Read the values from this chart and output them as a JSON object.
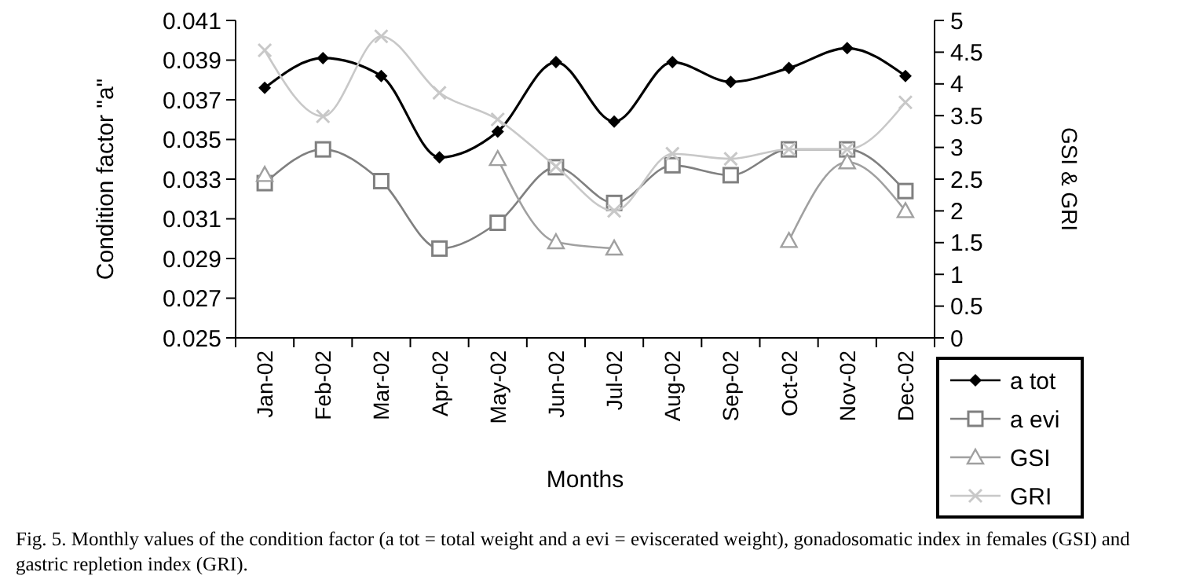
{
  "chart_data": {
    "type": "line",
    "xlabel": "Months",
    "ylabel": "Condition factor \"a\"",
    "y2label": "GSI & GRI",
    "categories": [
      "Jan-02",
      "Feb-02",
      "Mar-02",
      "Apr-02",
      "May-02",
      "Jun-02",
      "Jul-02",
      "Aug-02",
      "Sep-02",
      "Oct-02",
      "Nov-02",
      "Dec-02"
    ],
    "ylim": [
      0.025,
      0.041
    ],
    "yticks": [
      0.025,
      0.027,
      0.029,
      0.031,
      0.033,
      0.035,
      0.037,
      0.039,
      0.041
    ],
    "y2lim": [
      0,
      5
    ],
    "y2ticks": [
      0,
      0.5,
      1,
      1.5,
      2,
      2.5,
      3,
      3.5,
      4,
      4.5,
      5
    ],
    "legend": "bottom right",
    "grid": false,
    "line_style": "solid",
    "series": [
      {
        "name": "a tot",
        "color": "#000000",
        "marker": "diamond",
        "values": [
          0.0376,
          0.0391,
          0.0382,
          0.0341,
          0.0354,
          0.0389,
          0.0359,
          0.0389,
          0.0379,
          0.0386,
          0.0396,
          0.0382
        ]
      },
      {
        "name": "a evi",
        "color": "#808080",
        "marker": "square",
        "values": [
          0.0328,
          0.0345,
          0.0329,
          0.0295,
          0.0308,
          0.0336,
          0.0318,
          0.0337,
          0.0332,
          0.0345,
          0.0345,
          0.0324
        ]
      },
      {
        "name": "GSI",
        "color": "#a0a0a0",
        "marker": "triangle",
        "axis": "y2",
        "values": [
          2.57,
          null,
          null,
          null,
          2.82,
          1.51,
          1.41,
          null,
          null,
          1.53,
          2.77,
          2.0
        ]
      },
      {
        "name": "GRI",
        "color": "#c8c8c8",
        "marker": "cross",
        "axis": "y2",
        "values": [
          4.53,
          3.49,
          4.75,
          3.86,
          3.44,
          2.7,
          2.0,
          2.9,
          2.82,
          2.97,
          2.97,
          3.71
        ]
      }
    ],
    "annotations": [
      "Fig. 5. Monthly values of the condition factor (a tot = total weight and a evi = eviscerated weight), gonadosomatic index in females (GSI) and gastric repletion index (GRI)."
    ]
  }
}
